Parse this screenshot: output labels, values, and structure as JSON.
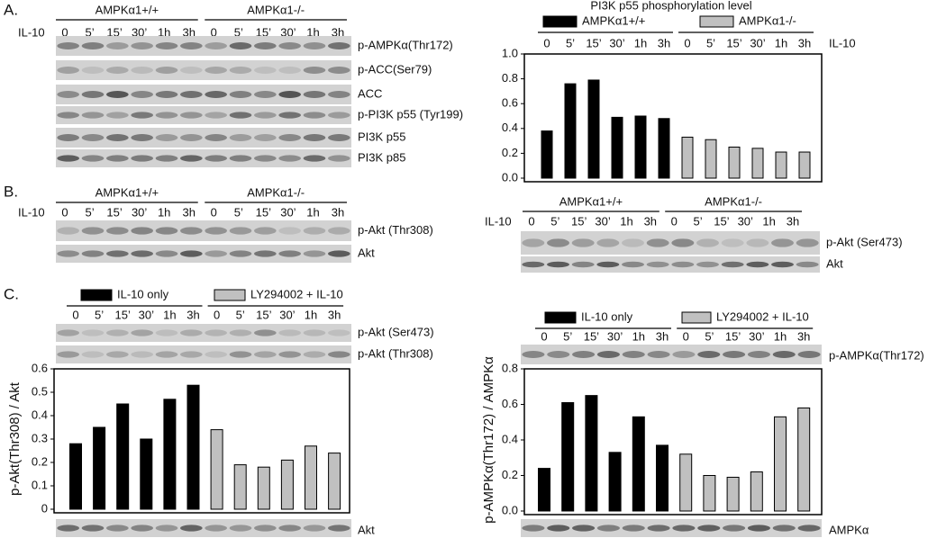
{
  "panels": {
    "a": "A.",
    "b": "B.",
    "c": "C."
  },
  "blot_a": {
    "groups": [
      "AMPKα1+/+",
      "AMPKα1-/-"
    ],
    "treatment": "IL-10",
    "times": [
      "0",
      "5’",
      "15’",
      "30’",
      "1h",
      "3h",
      "0",
      "5’",
      "15’",
      "30’",
      "1h",
      "3h"
    ],
    "bands": [
      "p-AMPKα(Thr172)",
      "p-ACC(Ser79)",
      "ACC",
      "p-PI3K p55 (Tyr199)",
      "PI3K p55",
      "PI3K p85"
    ]
  },
  "blot_b_left": {
    "groups": [
      "AMPKα1+/+",
      "AMPKα1-/-"
    ],
    "treatment": "IL-10",
    "times": [
      "0",
      "5’",
      "15’",
      "30’",
      "1h",
      "3h",
      "0",
      "5’",
      "15’",
      "30’",
      "1h",
      "3h"
    ],
    "bands": [
      "p-Akt (Thr308)",
      "Akt"
    ]
  },
  "blot_b_right": {
    "groups": [
      "AMPKα1+/+",
      "AMPKα1-/-"
    ],
    "treatment": "IL-10",
    "times": [
      "0",
      "5’",
      "15’",
      "30’",
      "1h",
      "3h",
      "0",
      "5’",
      "15’",
      "30’",
      "1h",
      "3h"
    ],
    "bands": [
      "p-Akt (Ser473)",
      "Akt"
    ]
  },
  "blot_c_left": {
    "bands": [
      "p-Akt (Ser473)",
      "p-Akt (Thr308)"
    ],
    "loading": "Akt"
  },
  "blot_c_right": {
    "bands": [
      "p-AMPKα(Thr172)"
    ],
    "loading": "AMPKα"
  },
  "chart_data": [
    {
      "type": "bar",
      "title": "PI3K p55 phosphorylation level",
      "x_label": "IL-10",
      "categories": [
        "0",
        "5’",
        "15’",
        "30’",
        "1h",
        "3h",
        "0",
        "5’",
        "15’",
        "30’",
        "1h",
        "3h"
      ],
      "series": [
        {
          "name": "AMPKα1+/+",
          "color": "#000000",
          "values": [
            0.38,
            0.76,
            0.79,
            0.49,
            0.5,
            0.48,
            null,
            null,
            null,
            null,
            null,
            null
          ]
        },
        {
          "name": "AMPKα1-/-",
          "color": "#c0c0c0",
          "values": [
            null,
            null,
            null,
            null,
            null,
            null,
            0.33,
            0.31,
            0.25,
            0.24,
            0.21,
            0.21
          ]
        }
      ],
      "ylim": [
        0,
        1
      ],
      "yticks": [
        {
          "value": 0,
          "label": "0.0"
        },
        0.2,
        0.4,
        0.6,
        0.8,
        {
          "value": 1,
          "label": "1.0"
        }
      ]
    },
    {
      "type": "bar",
      "y_label": "p-Akt(Thr308) / Akt",
      "categories": [
        "0",
        "5’",
        "15’",
        "30’",
        "1h",
        "3h",
        "0",
        "5’",
        "15’",
        "30’",
        "1h",
        "3h"
      ],
      "series": [
        {
          "name": "IL-10 only",
          "color": "#000000",
          "values": [
            0.28,
            0.35,
            0.45,
            0.3,
            0.47,
            0.53,
            null,
            null,
            null,
            null,
            null,
            null
          ]
        },
        {
          "name": "LY294002 + IL-10",
          "color": "#c0c0c0",
          "values": [
            null,
            null,
            null,
            null,
            null,
            null,
            0.34,
            0.19,
            0.18,
            0.21,
            0.27,
            0.24
          ]
        }
      ],
      "ylim": [
        0,
        0.6
      ],
      "yticks": [
        0,
        0.1,
        0.2,
        0.3,
        0.4,
        0.5,
        0.6
      ]
    },
    {
      "type": "bar",
      "y_label": "p-AMPKα(Thr172) / AMPKα",
      "categories": [
        "0",
        "5’",
        "15’",
        "30’",
        "1h",
        "3h",
        "0",
        "5’",
        "15’",
        "30’",
        "1h",
        "3h"
      ],
      "series": [
        {
          "name": "IL-10 only",
          "color": "#000000",
          "values": [
            0.24,
            0.61,
            0.65,
            0.33,
            0.53,
            0.37,
            null,
            null,
            null,
            null,
            null,
            null
          ]
        },
        {
          "name": "LY294002 + IL-10",
          "color": "#c0c0c0",
          "values": [
            null,
            null,
            null,
            null,
            null,
            null,
            0.32,
            0.2,
            0.19,
            0.22,
            0.53,
            0.58
          ]
        }
      ],
      "ylim": [
        0,
        0.8
      ],
      "yticks": [
        {
          "value": 0,
          "label": "0.0"
        },
        0.2,
        0.4,
        0.6,
        0.8
      ]
    }
  ]
}
